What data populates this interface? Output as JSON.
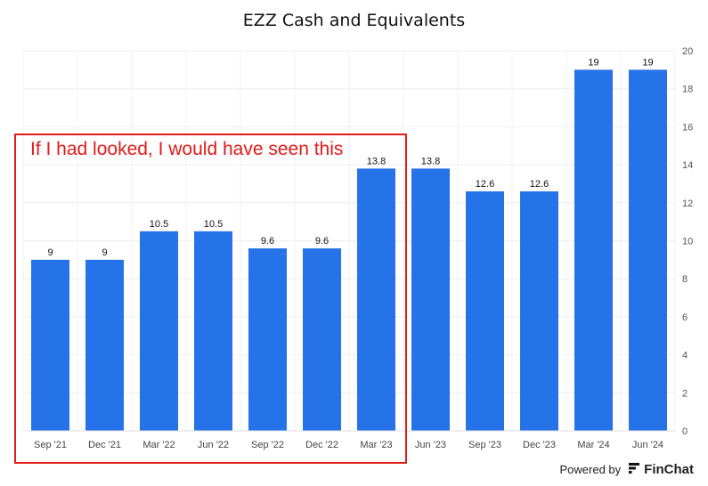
{
  "chart_data": {
    "type": "bar",
    "title": "EZZ Cash and Equivalents",
    "categories": [
      "Sep '21",
      "Dec '21",
      "Mar '22",
      "Jun '22",
      "Sep '22",
      "Dec '22",
      "Mar '23",
      "Jun '23",
      "Sep '23",
      "Dec '23",
      "Mar '24",
      "Jun '24"
    ],
    "values": [
      9,
      9,
      10.5,
      10.5,
      9.6,
      9.6,
      13.8,
      13.8,
      12.6,
      12.6,
      19,
      19
    ],
    "ylim": [
      0,
      20
    ],
    "yticks": [
      0,
      2,
      4,
      6,
      8,
      10,
      12,
      14,
      16,
      18,
      20
    ],
    "y_axis_side": "right",
    "grid": true,
    "bar_color": "#2672e8",
    "annotation": {
      "text": "If I had looked, I would have seen this",
      "color": "#e01b1b"
    }
  },
  "footer": {
    "powered_by": "Powered by",
    "brand": "FinChat",
    "logo_icon": "finchat-logo-icon"
  }
}
